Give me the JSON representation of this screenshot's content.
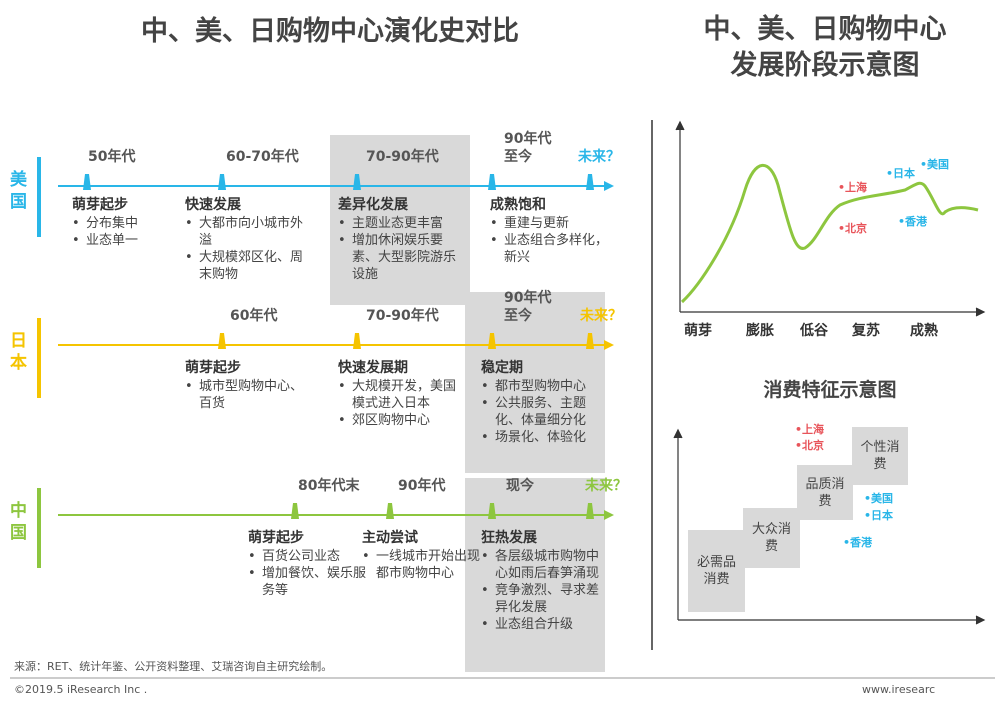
{
  "header": {
    "title": "中、美、日购物中心演化史对比",
    "right_title": [
      "中、美、日购物中心",
      "发展阶段示意图"
    ]
  },
  "rows": [
    {
      "label": "美国",
      "color": "#29b6e8",
      "periods": [
        {
          "label": "50年代",
          "stage": "萌芽起步",
          "points": [
            "分布集中",
            "业态单一"
          ]
        },
        {
          "label": "60-70年代",
          "stage": "快速发展",
          "points": [
            "大都市向小城市外溢",
            "大规模郊区化、周末购物"
          ]
        },
        {
          "label": "70-90年代",
          "stage": "差异化发展",
          "points": [
            "主题业态更丰富",
            "增加休闲娱乐要素、大型影院游乐设施"
          ]
        },
        {
          "label": "90年代\n至今",
          "stage": "成熟饱和",
          "points": [
            "重建与更新",
            "业态组合多样化，新兴"
          ]
        },
        {
          "label": "未来？"
        }
      ]
    },
    {
      "label": "日本",
      "color": "#f5c400",
      "periods": [
        {
          "label": "60年代",
          "stage": "萌芽起步",
          "points": [
            "城市型购物中心、百货"
          ]
        },
        {
          "label": "70-90年代",
          "stage": "快速发展期",
          "points": [
            "大规模开发，美国模式进入日本",
            "郊区购物中心"
          ]
        },
        {
          "label": "90年代\n至今",
          "stage": "稳定期",
          "points": [
            "都市型购物中心",
            "公共服务、主题化、体量细分化",
            "场景化、体验化"
          ]
        },
        {
          "label": "未来？"
        }
      ]
    },
    {
      "label": "中国",
      "color": "#8dc63f",
      "periods": [
        {
          "label": "80年代末",
          "stage": "萌芽起步",
          "points": [
            "百货公司业态",
            "增加餐饮、娱乐服务等"
          ]
        },
        {
          "label": "90年代",
          "stage": "主动尝试",
          "points": [
            "一线城市开始出现都市购物中心"
          ]
        },
        {
          "label": "现今",
          "stage": "狂热发展",
          "points": [
            "各层级城市购物中心如雨后春笋涌现",
            "竞争激烈、寻求差异化发展",
            "业态组合升级"
          ]
        },
        {
          "label": "未来？"
        }
      ]
    }
  ],
  "stage_chart": {
    "x_labels": [
      "萌芽",
      "膨胀",
      "低谷",
      "复苏",
      "成熟"
    ],
    "cities": [
      {
        "name": "上海",
        "color": "#e8545a"
      },
      {
        "name": "北京",
        "color": "#e8545a"
      },
      {
        "name": "日本",
        "color": "#29b6e8"
      },
      {
        "name": "美国",
        "color": "#29b6e8"
      },
      {
        "name": "香港",
        "color": "#29b6e8"
      }
    ]
  },
  "consumption_chart": {
    "title": "消费特征示意图",
    "steps": [
      "必需品消费",
      "大众消费",
      "品质消费",
      "个性消费"
    ],
    "cities": [
      {
        "name": "上海",
        "color": "#e8545a"
      },
      {
        "name": "北京",
        "color": "#e8545a"
      },
      {
        "name": "美国",
        "color": "#29b6e8"
      },
      {
        "name": "日本",
        "color": "#29b6e8"
      },
      {
        "name": "香港",
        "color": "#29b6e8"
      }
    ]
  },
  "footer": {
    "source": "来源：RET、统计年鉴、公开资料整理、艾瑞咨询自主研究绘制。",
    "copyright": "©2019.5 iResearch Inc .",
    "website": "www.iresearc"
  }
}
